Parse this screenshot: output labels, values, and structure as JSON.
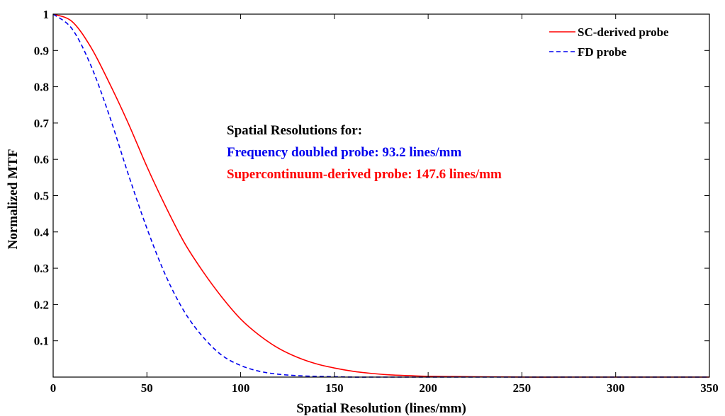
{
  "chart_data": {
    "type": "line",
    "xlabel": "Spatial Resolution (lines/mm)",
    "ylabel": "Normalized MTF",
    "xlim": [
      0,
      350
    ],
    "ylim": [
      0,
      1
    ],
    "x_ticks": [
      "0",
      "50",
      "100",
      "150",
      "200",
      "250",
      "300",
      "350"
    ],
    "y_ticks": [
      "0.1",
      "0.2",
      "0.3",
      "0.4",
      "0.5",
      "0.6",
      "0.7",
      "0.8",
      "0.9",
      "1"
    ],
    "grid": false,
    "legend_position": "top-right",
    "series": [
      {
        "name": "SC-derived probe",
        "color": "#ff0000",
        "line_style": "solid",
        "x": [
          0,
          10,
          20,
          30,
          40,
          50,
          60,
          70,
          80,
          90,
          100,
          110,
          120,
          130,
          140,
          150,
          160,
          170,
          180,
          190,
          200,
          225,
          250,
          275,
          300,
          325,
          350
        ],
        "y": [
          1.0,
          0.98,
          0.91,
          0.81,
          0.7,
          0.58,
          0.47,
          0.37,
          0.29,
          0.22,
          0.16,
          0.115,
          0.08,
          0.055,
          0.037,
          0.025,
          0.016,
          0.01,
          0.006,
          0.004,
          0.002,
          0.001,
          0.0,
          0.0,
          0.0,
          0.0,
          0.0
        ]
      },
      {
        "name": "FD probe",
        "color": "#0000ee",
        "line_style": "dashed",
        "x": [
          0,
          10,
          20,
          30,
          40,
          50,
          60,
          70,
          80,
          90,
          100,
          110,
          120,
          130,
          140,
          150,
          160,
          170,
          180,
          190,
          200,
          225,
          250,
          275,
          300,
          325,
          350
        ],
        "y": [
          1.0,
          0.96,
          0.86,
          0.72,
          0.56,
          0.41,
          0.28,
          0.18,
          0.11,
          0.06,
          0.032,
          0.016,
          0.008,
          0.004,
          0.002,
          0.001,
          0.0,
          0.0,
          0.0,
          0.0,
          0.0,
          0.0,
          0.0,
          0.0,
          0.0,
          0.0,
          0.0
        ]
      }
    ],
    "annotations": [
      {
        "text": "Spatial Resolutions for:",
        "color": "#000000"
      },
      {
        "text": "Frequency doubled probe: 93.2 lines/mm",
        "color": "#0000ee"
      },
      {
        "text": "Supercontinuum-derived probe: 147.6 lines/mm",
        "color": "#ff0000"
      }
    ]
  }
}
